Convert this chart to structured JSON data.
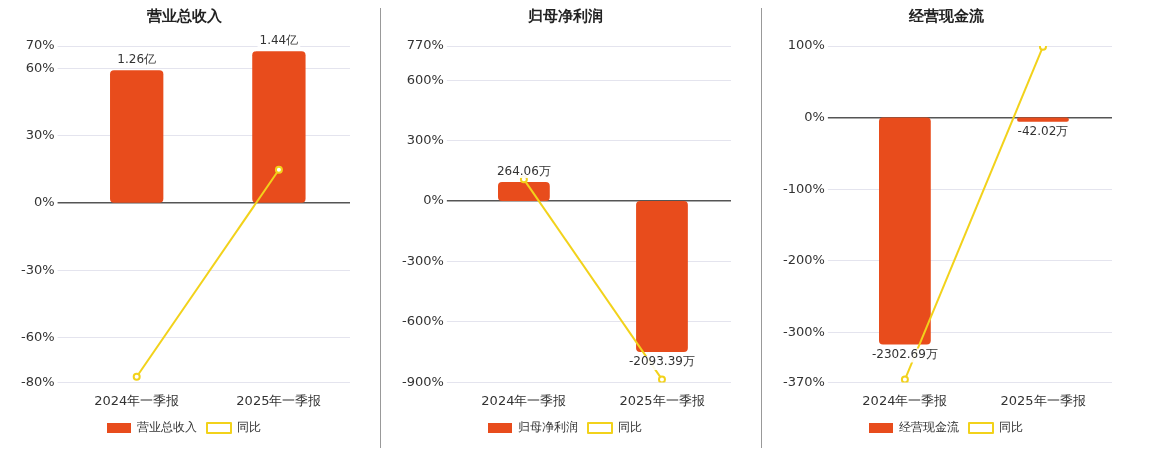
{
  "chart_data": [
    {
      "type": "bar",
      "title": "营业总收入",
      "categories": [
        "2024年一季报",
        "2025年一季报"
      ],
      "series": [
        {
          "name": "营业总收入",
          "axis": "y2",
          "color": "#e84c1c",
          "values": [
            1.26,
            1.44
          ],
          "value_labels": [
            "1.26亿",
            "1.44亿"
          ]
        },
        {
          "name": "同比",
          "type": "line",
          "color": "#f2d21b",
          "values": [
            -77.5,
            14.8
          ]
        }
      ],
      "ylim": [
        -80,
        70
      ],
      "yticks": [
        {
          "value": 70,
          "label": "70%"
        },
        {
          "value": 60,
          "label": "60%"
        },
        {
          "value": 30,
          "label": "30%"
        },
        {
          "value": 0,
          "label": "0%"
        },
        {
          "value": -30,
          "label": "-30%"
        },
        {
          "value": -60,
          "label": "-60%"
        },
        {
          "value": -80,
          "label": "-80%"
        }
      ],
      "y2lim": [
        -1.71,
        1.49
      ],
      "grid": "y",
      "legend": "bottom",
      "marker": "circle"
    },
    {
      "type": "bar",
      "title": "归母净利润",
      "categories": [
        "2024年一季报",
        "2025年一季报"
      ],
      "series": [
        {
          "name": "归母净利润",
          "axis": "y2",
          "color": "#e84c1c",
          "values": [
            264.06,
            -2093.39
          ],
          "value_labels": [
            "264.06万",
            "-2093.39万"
          ]
        },
        {
          "name": "同比",
          "type": "line",
          "color": "#f2d21b",
          "values": [
            108,
            -885
          ]
        }
      ],
      "ylim": [
        -900,
        770
      ],
      "yticks": [
        {
          "value": 770,
          "label": "770%"
        },
        {
          "value": 600,
          "label": "600%"
        },
        {
          "value": 300,
          "label": "300%"
        },
        {
          "value": 0,
          "label": "0%"
        },
        {
          "value": -300,
          "label": "-300%"
        },
        {
          "value": -600,
          "label": "-600%"
        },
        {
          "value": -900,
          "label": "-900%"
        }
      ],
      "y2lim": [
        -2513,
        2149
      ],
      "grid": "y",
      "legend": "bottom",
      "marker": "circle"
    },
    {
      "type": "bar",
      "title": "经营现金流",
      "categories": [
        "2024年一季报",
        "2025年一季报"
      ],
      "series": [
        {
          "name": "经营现金流",
          "axis": "y2",
          "color": "#e84c1c",
          "values": [
            -2302.69,
            -42.02
          ],
          "value_labels": [
            "-2302.69万",
            "-42.02万"
          ]
        },
        {
          "name": "同比",
          "type": "line",
          "color": "#f2d21b",
          "values": [
            -366,
            99
          ]
        }
      ],
      "ylim": [
        -370,
        100
      ],
      "yticks": [
        {
          "value": 100,
          "label": "100%"
        },
        {
          "value": 0,
          "label": "0%"
        },
        {
          "value": -100,
          "label": "-100%"
        },
        {
          "value": -200,
          "label": "-200%"
        },
        {
          "value": -300,
          "label": "-300%"
        },
        {
          "value": -370,
          "label": "-370%"
        }
      ],
      "y2lim": [
        -2687,
        726
      ],
      "grid": "y",
      "legend": "bottom",
      "marker": "circle"
    }
  ]
}
